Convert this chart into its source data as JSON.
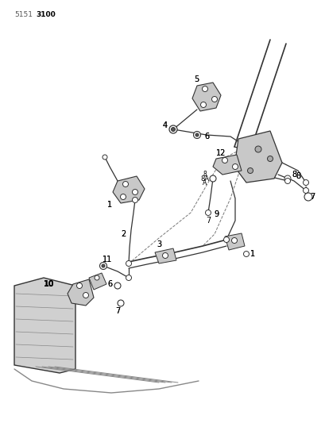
{
  "bg_color": "#ffffff",
  "line_color": "#333333",
  "label_color": "#000000",
  "code_left": "5151",
  "code_right": "3100",
  "figsize": [
    4.1,
    5.33
  ],
  "dpi": 100
}
